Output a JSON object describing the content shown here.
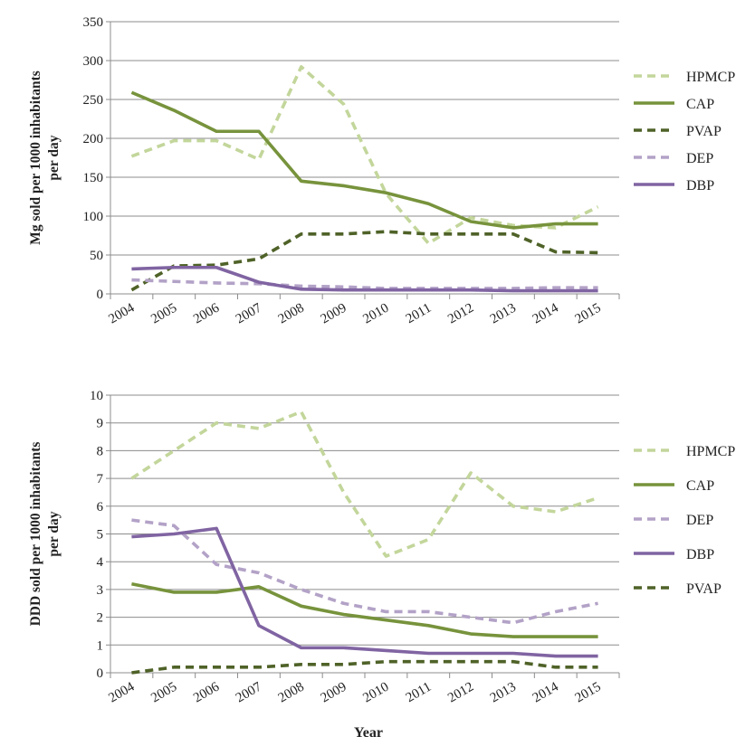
{
  "chart_data": [
    {
      "type": "line",
      "ylabel": "Mg sold per 1000 inhabitants per day",
      "ylabel_lines": [
        "Mg sold per 1000 inhabitants",
        "per day"
      ],
      "xlabel": "",
      "ylim": [
        0,
        350
      ],
      "yticks": [
        "0",
        "50",
        "100",
        "150",
        "200",
        "250",
        "300",
        "350"
      ],
      "ytick_values": [
        0,
        50,
        100,
        150,
        200,
        250,
        300,
        350
      ],
      "grid": true,
      "legend_position": "right",
      "categories": [
        "2004",
        "2005",
        "2006",
        "2007",
        "2008",
        "2009",
        "2010",
        "2011",
        "2012",
        "2013",
        "2014",
        "2015"
      ],
      "series": [
        {
          "name": "HPMCP",
          "color": "#c3d69b",
          "style": "dashed",
          "values": [
            177,
            197,
            197,
            173,
            292,
            244,
            129,
            65,
            98,
            88,
            85,
            112
          ]
        },
        {
          "name": "CAP",
          "color": "#77933c",
          "style": "solid",
          "values": [
            259,
            236,
            209,
            209,
            145,
            139,
            130,
            116,
            93,
            85,
            90,
            90
          ]
        },
        {
          "name": "PVAP",
          "color": "#4f6228",
          "style": "dashed",
          "values": [
            5,
            36,
            37,
            45,
            77,
            77,
            80,
            77,
            77,
            77,
            54,
            53
          ]
        },
        {
          "name": "DEP",
          "color": "#b3a2c7",
          "style": "dashed",
          "values": [
            18,
            16,
            14,
            13,
            10,
            9,
            7,
            7,
            7,
            7,
            8,
            8
          ]
        },
        {
          "name": "DBP",
          "color": "#8064a2",
          "style": "solid",
          "values": [
            32,
            34,
            34,
            15,
            6,
            5,
            5,
            5,
            5,
            4,
            4,
            4
          ]
        }
      ]
    },
    {
      "type": "line",
      "ylabel": "DDD sold per 1000 inhabitants per day",
      "ylabel_lines": [
        "DDD sold per 1000 inhabitants",
        "per day"
      ],
      "xlabel": "Year",
      "ylim": [
        0,
        10
      ],
      "yticks": [
        "0",
        "1",
        "2",
        "3",
        "4",
        "5",
        "6",
        "7",
        "8",
        "9",
        "10"
      ],
      "ytick_values": [
        0,
        1,
        2,
        3,
        4,
        5,
        6,
        7,
        8,
        9,
        10
      ],
      "grid": true,
      "legend_position": "right",
      "categories": [
        "2004",
        "2005",
        "2006",
        "2007",
        "2008",
        "2009",
        "2010",
        "2011",
        "2012",
        "2013",
        "2014",
        "2015"
      ],
      "series": [
        {
          "name": "HPMCP",
          "color": "#c3d69b",
          "style": "dashed",
          "values": [
            7.0,
            8.0,
            9.0,
            8.8,
            9.4,
            6.5,
            4.2,
            4.8,
            7.2,
            6.0,
            5.8,
            6.3
          ]
        },
        {
          "name": "CAP",
          "color": "#77933c",
          "style": "solid",
          "values": [
            3.2,
            2.9,
            2.9,
            3.1,
            2.4,
            2.1,
            1.9,
            1.7,
            1.4,
            1.3,
            1.3,
            1.3
          ]
        },
        {
          "name": "DEP",
          "color": "#b3a2c7",
          "style": "dashed",
          "values": [
            5.5,
            5.3,
            3.9,
            3.6,
            3.0,
            2.5,
            2.2,
            2.2,
            2.0,
            1.8,
            2.2,
            2.5
          ]
        },
        {
          "name": "DBP",
          "color": "#8064a2",
          "style": "solid",
          "values": [
            4.9,
            5.0,
            5.2,
            1.7,
            0.9,
            0.9,
            0.8,
            0.7,
            0.7,
            0.7,
            0.6,
            0.6
          ]
        },
        {
          "name": "PVAP",
          "color": "#4f6228",
          "style": "dashed",
          "values": [
            0.0,
            0.2,
            0.2,
            0.2,
            0.3,
            0.3,
            0.4,
            0.4,
            0.4,
            0.4,
            0.2,
            0.2
          ]
        }
      ]
    }
  ]
}
